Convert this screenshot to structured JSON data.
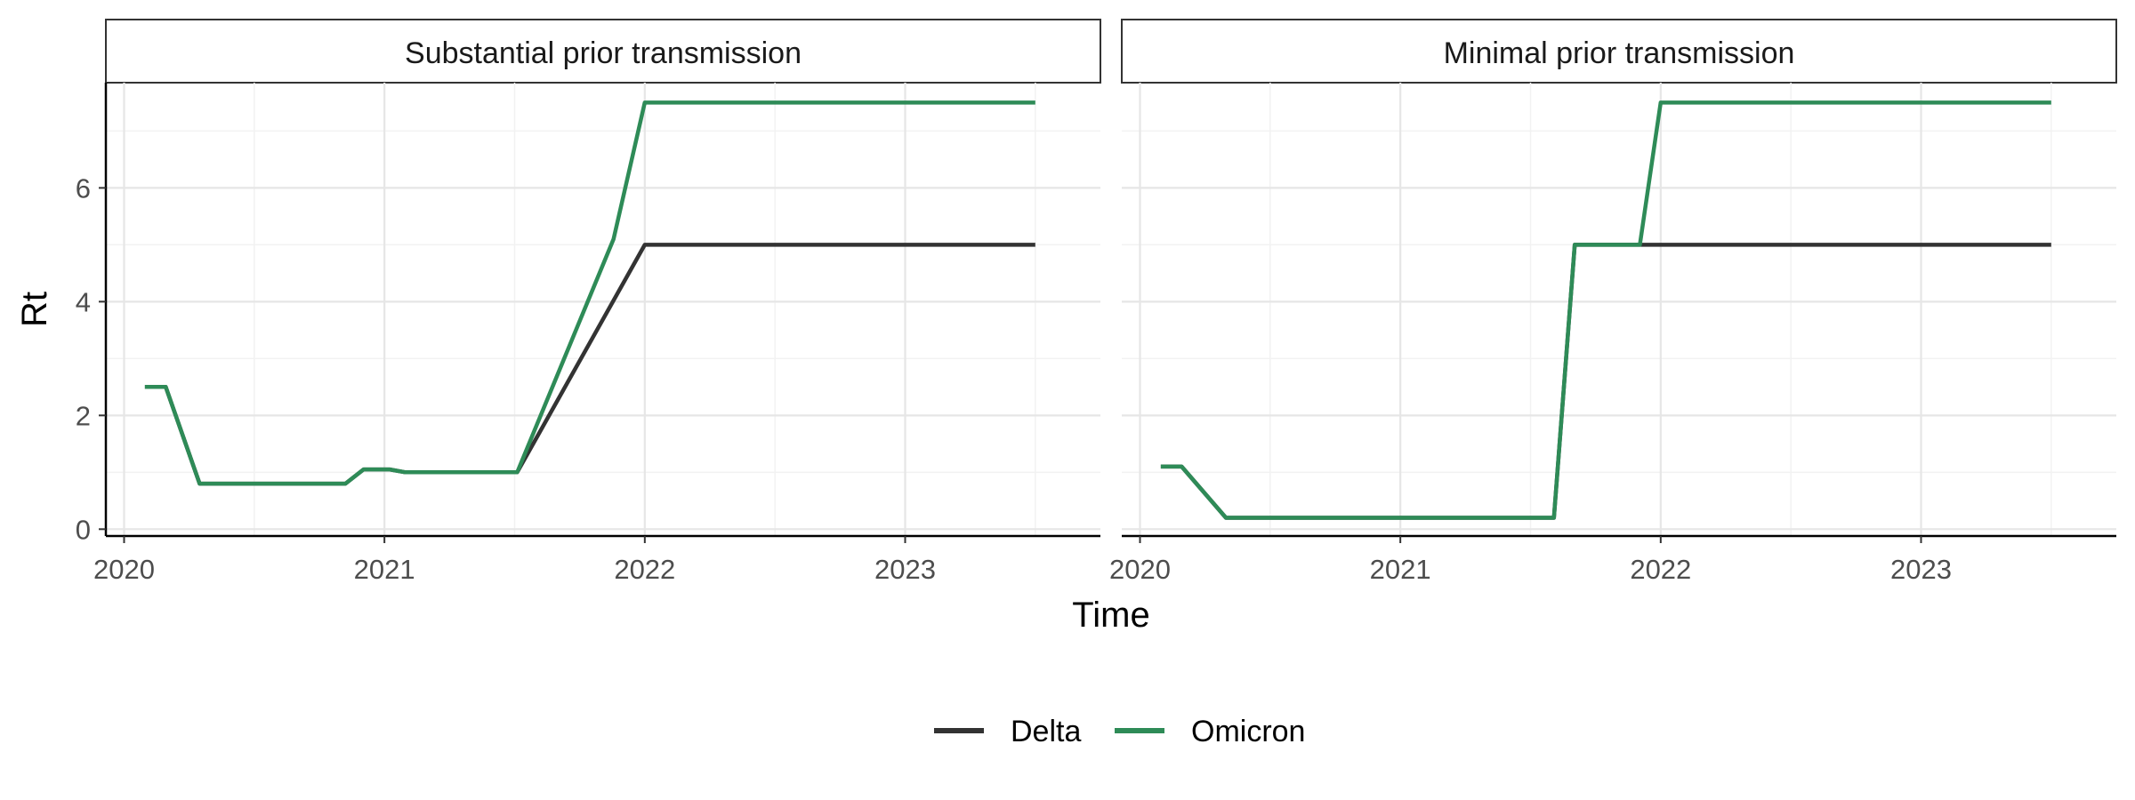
{
  "chart_data": {
    "type": "line",
    "xlabel": "Time",
    "ylabel": "Rt",
    "xlim": [
      2019.93,
      2023.75
    ],
    "ylim": [
      -0.12,
      7.85
    ],
    "x_ticks": [
      2020,
      2021,
      2022,
      2023
    ],
    "x_tick_labels": [
      "2020",
      "2021",
      "2022",
      "2023"
    ],
    "y_ticks": [
      0,
      2,
      4,
      6
    ],
    "y_tick_labels": [
      "0",
      "2",
      "4",
      "6"
    ],
    "grid": true,
    "legend_position": "bottom",
    "legend": [
      {
        "name": "Delta",
        "color": "#333333"
      },
      {
        "name": "Omicron",
        "color": "#2e8b57"
      }
    ],
    "panels": [
      {
        "title": "Substantial prior transmission",
        "series": [
          {
            "name": "Delta",
            "color": "#333333",
            "x": [
              2020.08,
              2020.16,
              2020.29,
              2020.85,
              2020.92,
              2021.02,
              2021.08,
              2021.51,
              2022.0,
              2023.5
            ],
            "y": [
              2.5,
              2.5,
              0.8,
              0.8,
              1.05,
              1.05,
              1.0,
              1.0,
              5.0,
              5.0
            ]
          },
          {
            "name": "Omicron",
            "color": "#2e8b57",
            "x": [
              2020.08,
              2020.16,
              2020.29,
              2020.85,
              2020.92,
              2021.02,
              2021.08,
              2021.51,
              2021.88,
              2022.0,
              2023.5
            ],
            "y": [
              2.5,
              2.5,
              0.8,
              0.8,
              1.05,
              1.05,
              1.0,
              1.0,
              5.1,
              7.5,
              7.5
            ]
          }
        ]
      },
      {
        "title": "Minimal prior transmission",
        "series": [
          {
            "name": "Delta",
            "color": "#333333",
            "x": [
              2020.08,
              2020.16,
              2020.33,
              2021.59,
              2021.67,
              2021.92,
              2022.0,
              2023.5
            ],
            "y": [
              1.1,
              1.1,
              0.2,
              0.2,
              5.0,
              5.0,
              5.0,
              5.0
            ]
          },
          {
            "name": "Omicron",
            "color": "#2e8b57",
            "x": [
              2020.08,
              2020.16,
              2020.33,
              2021.59,
              2021.67,
              2021.92,
              2022.0,
              2023.5
            ],
            "y": [
              1.1,
              1.1,
              0.2,
              0.2,
              5.0,
              5.0,
              7.5,
              7.5
            ]
          }
        ]
      }
    ]
  }
}
